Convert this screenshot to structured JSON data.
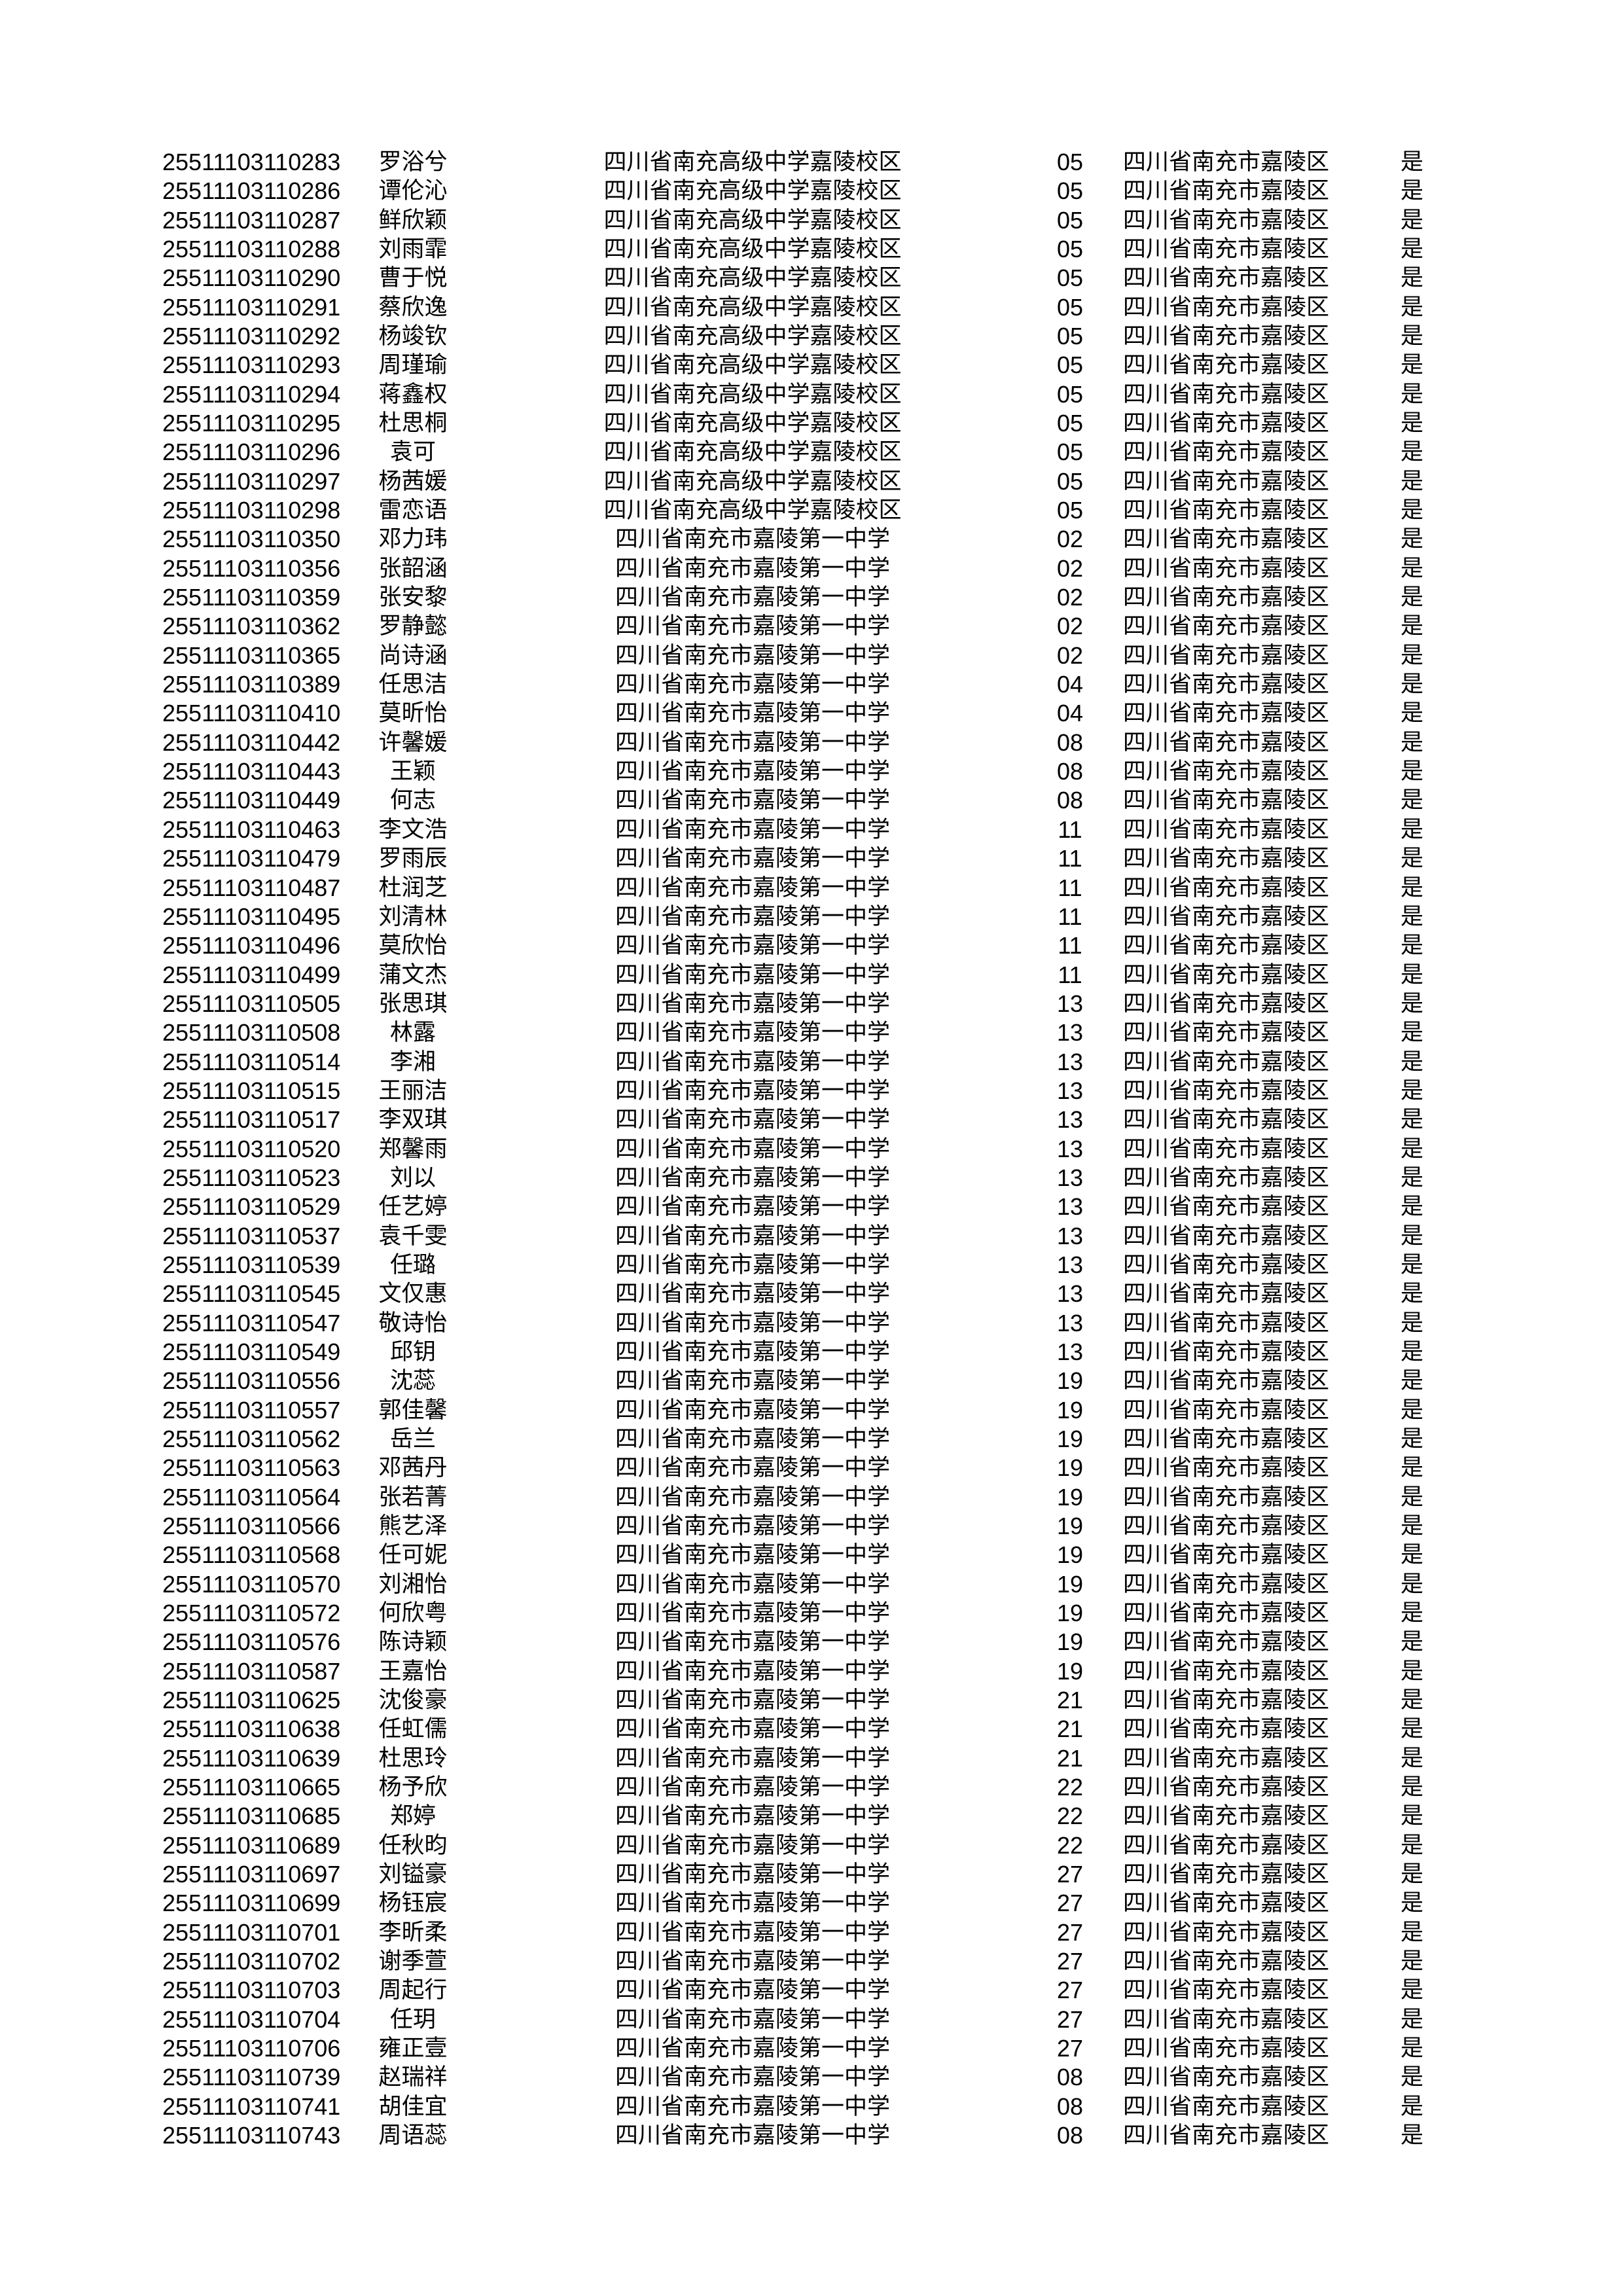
{
  "columns": [
    "id",
    "name",
    "school",
    "class_code",
    "district",
    "flag"
  ],
  "rows": [
    [
      "25511103110283",
      "罗浴兮",
      "四川省南充高级中学嘉陵校区",
      "05",
      "四川省南充市嘉陵区",
      "是"
    ],
    [
      "25511103110286",
      "谭伦沁",
      "四川省南充高级中学嘉陵校区",
      "05",
      "四川省南充市嘉陵区",
      "是"
    ],
    [
      "25511103110287",
      "鲜欣颖",
      "四川省南充高级中学嘉陵校区",
      "05",
      "四川省南充市嘉陵区",
      "是"
    ],
    [
      "25511103110288",
      "刘雨霏",
      "四川省南充高级中学嘉陵校区",
      "05",
      "四川省南充市嘉陵区",
      "是"
    ],
    [
      "25511103110290",
      "曹于悦",
      "四川省南充高级中学嘉陵校区",
      "05",
      "四川省南充市嘉陵区",
      "是"
    ],
    [
      "25511103110291",
      "蔡欣逸",
      "四川省南充高级中学嘉陵校区",
      "05",
      "四川省南充市嘉陵区",
      "是"
    ],
    [
      "25511103110292",
      "杨竣钦",
      "四川省南充高级中学嘉陵校区",
      "05",
      "四川省南充市嘉陵区",
      "是"
    ],
    [
      "25511103110293",
      "周瑾瑜",
      "四川省南充高级中学嘉陵校区",
      "05",
      "四川省南充市嘉陵区",
      "是"
    ],
    [
      "25511103110294",
      "蒋鑫权",
      "四川省南充高级中学嘉陵校区",
      "05",
      "四川省南充市嘉陵区",
      "是"
    ],
    [
      "25511103110295",
      "杜思桐",
      "四川省南充高级中学嘉陵校区",
      "05",
      "四川省南充市嘉陵区",
      "是"
    ],
    [
      "25511103110296",
      "袁可",
      "四川省南充高级中学嘉陵校区",
      "05",
      "四川省南充市嘉陵区",
      "是"
    ],
    [
      "25511103110297",
      "杨茜媛",
      "四川省南充高级中学嘉陵校区",
      "05",
      "四川省南充市嘉陵区",
      "是"
    ],
    [
      "25511103110298",
      "雷恋语",
      "四川省南充高级中学嘉陵校区",
      "05",
      "四川省南充市嘉陵区",
      "是"
    ],
    [
      "25511103110350",
      "邓力玮",
      "四川省南充市嘉陵第一中学",
      "02",
      "四川省南充市嘉陵区",
      "是"
    ],
    [
      "25511103110356",
      "张韶涵",
      "四川省南充市嘉陵第一中学",
      "02",
      "四川省南充市嘉陵区",
      "是"
    ],
    [
      "25511103110359",
      "张安黎",
      "四川省南充市嘉陵第一中学",
      "02",
      "四川省南充市嘉陵区",
      "是"
    ],
    [
      "25511103110362",
      "罗静懿",
      "四川省南充市嘉陵第一中学",
      "02",
      "四川省南充市嘉陵区",
      "是"
    ],
    [
      "25511103110365",
      "尚诗涵",
      "四川省南充市嘉陵第一中学",
      "02",
      "四川省南充市嘉陵区",
      "是"
    ],
    [
      "25511103110389",
      "任思洁",
      "四川省南充市嘉陵第一中学",
      "04",
      "四川省南充市嘉陵区",
      "是"
    ],
    [
      "25511103110410",
      "莫昕怡",
      "四川省南充市嘉陵第一中学",
      "04",
      "四川省南充市嘉陵区",
      "是"
    ],
    [
      "25511103110442",
      "许馨媛",
      "四川省南充市嘉陵第一中学",
      "08",
      "四川省南充市嘉陵区",
      "是"
    ],
    [
      "25511103110443",
      "王颖",
      "四川省南充市嘉陵第一中学",
      "08",
      "四川省南充市嘉陵区",
      "是"
    ],
    [
      "25511103110449",
      "何志",
      "四川省南充市嘉陵第一中学",
      "08",
      "四川省南充市嘉陵区",
      "是"
    ],
    [
      "25511103110463",
      "李文浩",
      "四川省南充市嘉陵第一中学",
      "11",
      "四川省南充市嘉陵区",
      "是"
    ],
    [
      "25511103110479",
      "罗雨辰",
      "四川省南充市嘉陵第一中学",
      "11",
      "四川省南充市嘉陵区",
      "是"
    ],
    [
      "25511103110487",
      "杜润芝",
      "四川省南充市嘉陵第一中学",
      "11",
      "四川省南充市嘉陵区",
      "是"
    ],
    [
      "25511103110495",
      "刘清林",
      "四川省南充市嘉陵第一中学",
      "11",
      "四川省南充市嘉陵区",
      "是"
    ],
    [
      "25511103110496",
      "莫欣怡",
      "四川省南充市嘉陵第一中学",
      "11",
      "四川省南充市嘉陵区",
      "是"
    ],
    [
      "25511103110499",
      "蒲文杰",
      "四川省南充市嘉陵第一中学",
      "11",
      "四川省南充市嘉陵区",
      "是"
    ],
    [
      "25511103110505",
      "张思琪",
      "四川省南充市嘉陵第一中学",
      "13",
      "四川省南充市嘉陵区",
      "是"
    ],
    [
      "25511103110508",
      "林露",
      "四川省南充市嘉陵第一中学",
      "13",
      "四川省南充市嘉陵区",
      "是"
    ],
    [
      "25511103110514",
      "李湘",
      "四川省南充市嘉陵第一中学",
      "13",
      "四川省南充市嘉陵区",
      "是"
    ],
    [
      "25511103110515",
      "王丽洁",
      "四川省南充市嘉陵第一中学",
      "13",
      "四川省南充市嘉陵区",
      "是"
    ],
    [
      "25511103110517",
      "李双琪",
      "四川省南充市嘉陵第一中学",
      "13",
      "四川省南充市嘉陵区",
      "是"
    ],
    [
      "25511103110520",
      "郑馨雨",
      "四川省南充市嘉陵第一中学",
      "13",
      "四川省南充市嘉陵区",
      "是"
    ],
    [
      "25511103110523",
      "刘以",
      "四川省南充市嘉陵第一中学",
      "13",
      "四川省南充市嘉陵区",
      "是"
    ],
    [
      "25511103110529",
      "任艺婷",
      "四川省南充市嘉陵第一中学",
      "13",
      "四川省南充市嘉陵区",
      "是"
    ],
    [
      "25511103110537",
      "袁千雯",
      "四川省南充市嘉陵第一中学",
      "13",
      "四川省南充市嘉陵区",
      "是"
    ],
    [
      "25511103110539",
      "任璐",
      "四川省南充市嘉陵第一中学",
      "13",
      "四川省南充市嘉陵区",
      "是"
    ],
    [
      "25511103110545",
      "文仅惠",
      "四川省南充市嘉陵第一中学",
      "13",
      "四川省南充市嘉陵区",
      "是"
    ],
    [
      "25511103110547",
      "敬诗怡",
      "四川省南充市嘉陵第一中学",
      "13",
      "四川省南充市嘉陵区",
      "是"
    ],
    [
      "25511103110549",
      "邱钥",
      "四川省南充市嘉陵第一中学",
      "13",
      "四川省南充市嘉陵区",
      "是"
    ],
    [
      "25511103110556",
      "沈蕊",
      "四川省南充市嘉陵第一中学",
      "19",
      "四川省南充市嘉陵区",
      "是"
    ],
    [
      "25511103110557",
      "郭佳馨",
      "四川省南充市嘉陵第一中学",
      "19",
      "四川省南充市嘉陵区",
      "是"
    ],
    [
      "25511103110562",
      "岳兰",
      "四川省南充市嘉陵第一中学",
      "19",
      "四川省南充市嘉陵区",
      "是"
    ],
    [
      "25511103110563",
      "邓茜丹",
      "四川省南充市嘉陵第一中学",
      "19",
      "四川省南充市嘉陵区",
      "是"
    ],
    [
      "25511103110564",
      "张若菁",
      "四川省南充市嘉陵第一中学",
      "19",
      "四川省南充市嘉陵区",
      "是"
    ],
    [
      "25511103110566",
      "熊艺泽",
      "四川省南充市嘉陵第一中学",
      "19",
      "四川省南充市嘉陵区",
      "是"
    ],
    [
      "25511103110568",
      "任可妮",
      "四川省南充市嘉陵第一中学",
      "19",
      "四川省南充市嘉陵区",
      "是"
    ],
    [
      "25511103110570",
      "刘湘怡",
      "四川省南充市嘉陵第一中学",
      "19",
      "四川省南充市嘉陵区",
      "是"
    ],
    [
      "25511103110572",
      "何欣粤",
      "四川省南充市嘉陵第一中学",
      "19",
      "四川省南充市嘉陵区",
      "是"
    ],
    [
      "25511103110576",
      "陈诗颖",
      "四川省南充市嘉陵第一中学",
      "19",
      "四川省南充市嘉陵区",
      "是"
    ],
    [
      "25511103110587",
      "王嘉怡",
      "四川省南充市嘉陵第一中学",
      "19",
      "四川省南充市嘉陵区",
      "是"
    ],
    [
      "25511103110625",
      "沈俊豪",
      "四川省南充市嘉陵第一中学",
      "21",
      "四川省南充市嘉陵区",
      "是"
    ],
    [
      "25511103110638",
      "任虹儒",
      "四川省南充市嘉陵第一中学",
      "21",
      "四川省南充市嘉陵区",
      "是"
    ],
    [
      "25511103110639",
      "杜思玲",
      "四川省南充市嘉陵第一中学",
      "21",
      "四川省南充市嘉陵区",
      "是"
    ],
    [
      "25511103110665",
      "杨予欣",
      "四川省南充市嘉陵第一中学",
      "22",
      "四川省南充市嘉陵区",
      "是"
    ],
    [
      "25511103110685",
      "郑婷",
      "四川省南充市嘉陵第一中学",
      "22",
      "四川省南充市嘉陵区",
      "是"
    ],
    [
      "25511103110689",
      "任秋昀",
      "四川省南充市嘉陵第一中学",
      "22",
      "四川省南充市嘉陵区",
      "是"
    ],
    [
      "25511103110697",
      "刘镒豪",
      "四川省南充市嘉陵第一中学",
      "27",
      "四川省南充市嘉陵区",
      "是"
    ],
    [
      "25511103110699",
      "杨钰宸",
      "四川省南充市嘉陵第一中学",
      "27",
      "四川省南充市嘉陵区",
      "是"
    ],
    [
      "25511103110701",
      "李昕柔",
      "四川省南充市嘉陵第一中学",
      "27",
      "四川省南充市嘉陵区",
      "是"
    ],
    [
      "25511103110702",
      "谢季萱",
      "四川省南充市嘉陵第一中学",
      "27",
      "四川省南充市嘉陵区",
      "是"
    ],
    [
      "25511103110703",
      "周起行",
      "四川省南充市嘉陵第一中学",
      "27",
      "四川省南充市嘉陵区",
      "是"
    ],
    [
      "25511103110704",
      "任玥",
      "四川省南充市嘉陵第一中学",
      "27",
      "四川省南充市嘉陵区",
      "是"
    ],
    [
      "25511103110706",
      "雍正壹",
      "四川省南充市嘉陵第一中学",
      "27",
      "四川省南充市嘉陵区",
      "是"
    ],
    [
      "25511103110739",
      "赵瑞祥",
      "四川省南充市嘉陵第一中学",
      "08",
      "四川省南充市嘉陵区",
      "是"
    ],
    [
      "25511103110741",
      "胡佳宜",
      "四川省南充市嘉陵第一中学",
      "08",
      "四川省南充市嘉陵区",
      "是"
    ],
    [
      "25511103110743",
      "周语蕊",
      "四川省南充市嘉陵第一中学",
      "08",
      "四川省南充市嘉陵区",
      "是"
    ]
  ]
}
